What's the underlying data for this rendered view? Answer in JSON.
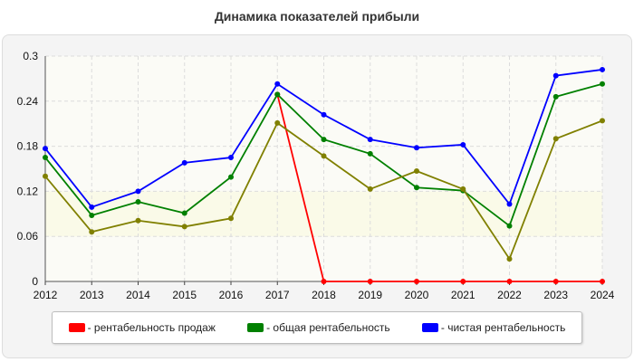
{
  "title": "Динамика показателей прибыли",
  "chart_data": {
    "type": "line",
    "title": "Динамика показателей прибыли",
    "xlabel": "",
    "ylabel": "",
    "x": [
      "2012",
      "2013",
      "2014",
      "2015",
      "2016",
      "2017",
      "2018",
      "2019",
      "2020",
      "2021",
      "2022",
      "2023",
      "2024"
    ],
    "ylim": [
      0,
      0.3
    ],
    "yticks": [
      "0",
      "0.06",
      "0.12",
      "0.18",
      "0.24",
      "0.3"
    ],
    "grid": true,
    "legend_position": "bottom",
    "series": [
      {
        "name": "- рентабельность продаж",
        "color": "#ff0000",
        "values": [
          null,
          null,
          null,
          null,
          null,
          0.249,
          0,
          0,
          0,
          0,
          0,
          0,
          0
        ]
      },
      {
        "name": "- общая рентабельность",
        "color": "#008000",
        "values": [
          0.165,
          0.088,
          0.106,
          0.091,
          0.139,
          0.249,
          0.189,
          0.17,
          0.125,
          0.121,
          0.074,
          0.246,
          0.263
        ]
      },
      {
        "name": "- чистая рентабельность",
        "color": "#0000ff",
        "values": [
          0.177,
          0.099,
          0.12,
          0.158,
          0.165,
          0.263,
          0.222,
          0.189,
          0.178,
          0.182,
          0.103,
          0.274,
          0.282
        ]
      },
      {
        "name": "",
        "color": "#808000",
        "values": [
          0.14,
          0.066,
          0.081,
          0.073,
          0.084,
          0.211,
          0.167,
          0.123,
          0.147,
          0.123,
          0.03,
          0.19,
          0.214
        ]
      }
    ]
  }
}
